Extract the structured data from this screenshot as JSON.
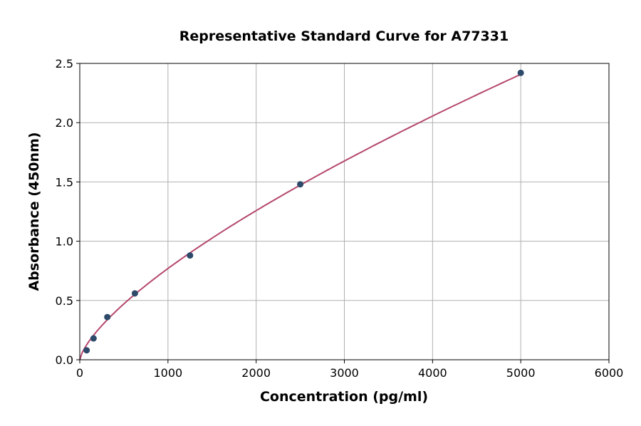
{
  "chart_data": {
    "type": "scatter",
    "title": "Representative Standard Curve for A77331",
    "xlabel": "Concentration (pg/ml)",
    "ylabel": "Absorbance (450nm)",
    "xlim": [
      0,
      6000
    ],
    "ylim": [
      0,
      2.5
    ],
    "xticks": [
      0,
      1000,
      2000,
      3000,
      4000,
      5000,
      6000
    ],
    "yticks": [
      0.0,
      0.5,
      1.0,
      1.5,
      2.0,
      2.5
    ],
    "xtick_labels": [
      "0",
      "1000",
      "2000",
      "3000",
      "4000",
      "5000",
      "6000"
    ],
    "ytick_labels": [
      "0.0",
      "0.5",
      "1.0",
      "1.5",
      "2.0",
      "2.5"
    ],
    "grid": true,
    "series": [
      {
        "x": [
          78.125,
          156.25,
          312.5,
          625,
          1250,
          2500,
          5000
        ],
        "y": [
          0.08,
          0.18,
          0.36,
          0.56,
          0.88,
          1.48,
          2.42
        ],
        "marker_color": "#2e4a6b",
        "fit_line_color": "#b5476e"
      }
    ]
  }
}
